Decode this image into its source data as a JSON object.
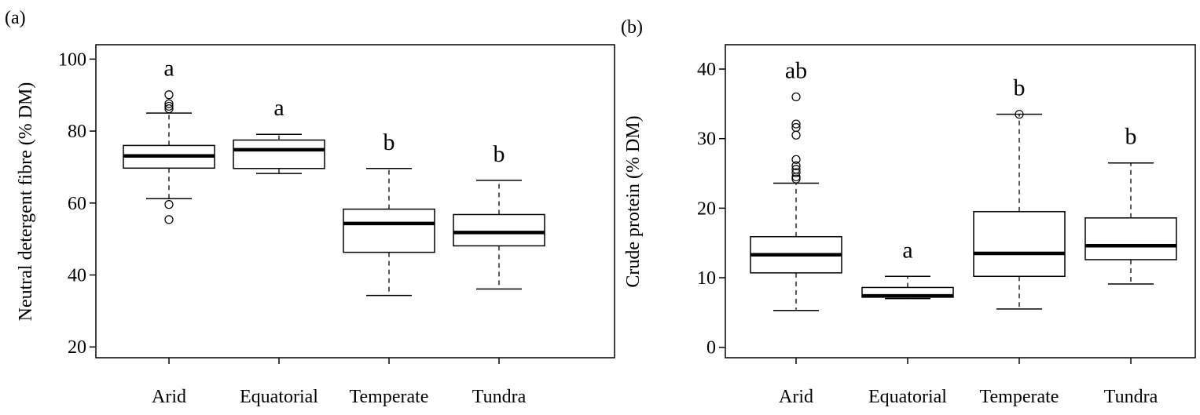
{
  "chart_data": [
    {
      "type": "box",
      "panel_label": "(a)",
      "title": "",
      "xlabel": "",
      "ylabel": "Neutral detergent fibre (% DM)",
      "ylim": [
        17,
        104
      ],
      "yticks": [
        20,
        40,
        60,
        80,
        100
      ],
      "grid": false,
      "categories": [
        "Arid",
        "Equatorial",
        "Temperate",
        "Tundra"
      ],
      "boxes": [
        {
          "category": "Arid",
          "whisker_low": 61.2,
          "q1": 69.7,
          "median": 73.1,
          "q3": 76.0,
          "whisker_high": 85.0,
          "outliers": [
            90.1,
            87.6,
            86.9,
            86.2,
            59.6,
            55.4
          ],
          "letter": "a"
        },
        {
          "category": "Equatorial",
          "whisker_low": 68.2,
          "q1": 69.6,
          "median": 74.8,
          "q3": 77.5,
          "whisker_high": 79.1,
          "outliers": [],
          "letter": "a"
        },
        {
          "category": "Temperate",
          "whisker_low": 34.3,
          "q1": 46.3,
          "median": 54.3,
          "q3": 58.3,
          "whisker_high": 69.6,
          "outliers": [],
          "letter": "b"
        },
        {
          "category": "Tundra",
          "whisker_low": 36.1,
          "q1": 48.1,
          "median": 51.8,
          "q3": 56.8,
          "whisker_high": 66.3,
          "outliers": [],
          "letter": "b"
        }
      ]
    },
    {
      "type": "box",
      "panel_label": "(b)",
      "title": "",
      "xlabel": "",
      "ylabel": "Crude protein (% DM)",
      "ylim": [
        -1.5,
        43.5
      ],
      "yticks": [
        0,
        10,
        20,
        30,
        40
      ],
      "grid": false,
      "categories": [
        "Arid",
        "Equatorial",
        "Temperate",
        "Tundra"
      ],
      "boxes": [
        {
          "category": "Arid",
          "whisker_low": 5.3,
          "q1": 10.7,
          "median": 13.3,
          "q3": 15.9,
          "whisker_high": 23.6,
          "outliers": [
            36.0,
            32.1,
            31.6,
            30.5,
            27.0,
            26.1,
            25.6,
            25.1,
            24.5,
            24.2
          ],
          "letter": "ab"
        },
        {
          "category": "Equatorial",
          "whisker_low": 7.0,
          "q1": 7.2,
          "median": 7.4,
          "q3": 8.6,
          "whisker_high": 10.2,
          "outliers": [],
          "letter": "a"
        },
        {
          "category": "Temperate",
          "whisker_low": 5.5,
          "q1": 10.2,
          "median": 13.5,
          "q3": 19.5,
          "whisker_high": 33.5,
          "outliers": [
            33.5
          ],
          "letter": "b"
        },
        {
          "category": "Tundra",
          "whisker_low": 9.1,
          "q1": 12.6,
          "median": 14.6,
          "q3": 18.6,
          "whisker_high": 26.5,
          "outliers": [],
          "letter": "b"
        }
      ]
    }
  ]
}
